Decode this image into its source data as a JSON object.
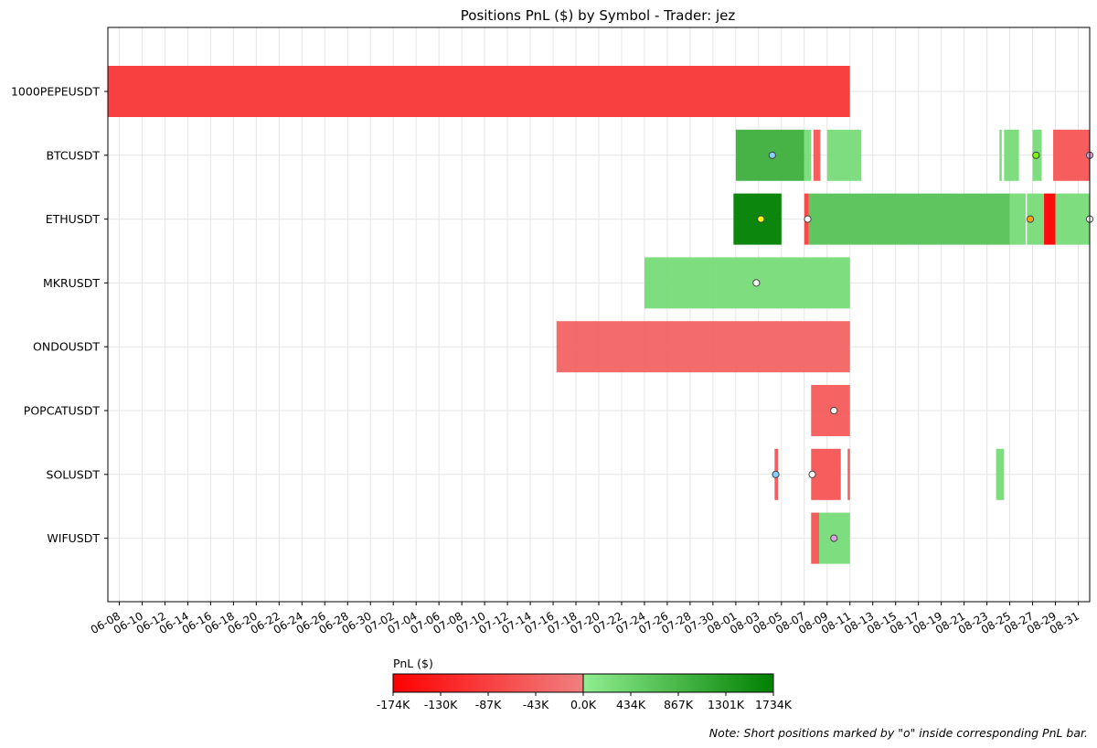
{
  "chart_data": {
    "type": "gantt",
    "title": "Positions PnL ($) by Symbol - Trader: jez",
    "xlabel": "",
    "ylabel": "",
    "xlim": [
      "2024-06-07",
      "2024-09-01"
    ],
    "grid": true,
    "x_tick_labels": [
      "06-08",
      "06-10",
      "06-12",
      "06-14",
      "06-16",
      "06-18",
      "06-20",
      "06-22",
      "06-24",
      "06-26",
      "06-28",
      "06-30",
      "07-02",
      "07-04",
      "07-06",
      "07-08",
      "07-10",
      "07-12",
      "07-14",
      "07-16",
      "07-18",
      "07-20",
      "07-22",
      "07-24",
      "07-26",
      "07-28",
      "07-30",
      "08-01",
      "08-03",
      "08-05",
      "08-07",
      "08-09",
      "08-11",
      "08-13",
      "08-15",
      "08-17",
      "08-19",
      "08-21",
      "08-23",
      "08-25",
      "08-27",
      "08-29",
      "08-31"
    ],
    "symbols": [
      "1000PEPEUSDT",
      "BTCUSDT",
      "ETHUSDT",
      "MKRUSDT",
      "ONDOUSDT",
      "POPCATUSDT",
      "SOLUSDT",
      "WIFUSDT"
    ],
    "positions": [
      {
        "symbol": "1000PEPEUSDT",
        "start": "2024-06-07",
        "end": "2024-08-11",
        "pnl": -100000
      },
      {
        "symbol": "BTCUSDT",
        "start": "2024-08-01",
        "end": "2024-08-07",
        "pnl": 1000000
      },
      {
        "symbol": "BTCUSDT",
        "start": "2024-08-07",
        "end": "2024-08-07.6",
        "pnl": 300000
      },
      {
        "symbol": "BTCUSDT",
        "start": "2024-08-07.8",
        "end": "2024-08-08.4",
        "pnl": -60000
      },
      {
        "symbol": "BTCUSDT",
        "start": "2024-08-09",
        "end": "2024-08-12",
        "pnl": 300000
      },
      {
        "symbol": "BTCUSDT",
        "start": "2024-08-24.1",
        "end": "2024-08-24.3",
        "pnl": 300000
      },
      {
        "symbol": "BTCUSDT",
        "start": "2024-08-24.5",
        "end": "2024-08-25.8",
        "pnl": 300000
      },
      {
        "symbol": "BTCUSDT",
        "start": "2024-08-27",
        "end": "2024-08-27.8",
        "pnl": 300000
      },
      {
        "symbol": "BTCUSDT",
        "start": "2024-08-28.8",
        "end": "2024-09-01",
        "pnl": -60000
      },
      {
        "symbol": "ETHUSDT",
        "start": "2024-07-31.8",
        "end": "2024-08-05",
        "pnl": 1734000
      },
      {
        "symbol": "ETHUSDT",
        "start": "2024-08-07",
        "end": "2024-08-07.4",
        "pnl": -90000
      },
      {
        "symbol": "ETHUSDT",
        "start": "2024-08-07.4",
        "end": "2024-08-25",
        "pnl": 700000
      },
      {
        "symbol": "ETHUSDT",
        "start": "2024-08-25",
        "end": "2024-08-26.4",
        "pnl": 300000
      },
      {
        "symbol": "ETHUSDT",
        "start": "2024-08-26.5",
        "end": "2024-08-28",
        "pnl": 300000
      },
      {
        "symbol": "ETHUSDT",
        "start": "2024-08-28",
        "end": "2024-08-29",
        "pnl": -174000
      },
      {
        "symbol": "ETHUSDT",
        "start": "2024-08-29",
        "end": "2024-09-01",
        "pnl": 300000
      },
      {
        "symbol": "MKRUSDT",
        "start": "2024-07-24",
        "end": "2024-08-11",
        "pnl": 300000
      },
      {
        "symbol": "ONDOUSDT",
        "start": "2024-07-16.3",
        "end": "2024-08-11",
        "pnl": -40000
      },
      {
        "symbol": "POPCATUSDT",
        "start": "2024-08-07.6",
        "end": "2024-08-11",
        "pnl": -50000
      },
      {
        "symbol": "SOLUSDT",
        "start": "2024-08-04.4",
        "end": "2024-08-04.7",
        "pnl": -60000
      },
      {
        "symbol": "SOLUSDT",
        "start": "2024-08-07.6",
        "end": "2024-08-10.2",
        "pnl": -60000
      },
      {
        "symbol": "SOLUSDT",
        "start": "2024-08-10.8",
        "end": "2024-08-11",
        "pnl": -60000
      },
      {
        "symbol": "SOLUSDT",
        "start": "2024-08-23.8",
        "end": "2024-08-24.5",
        "pnl": 300000
      },
      {
        "symbol": "WIFUSDT",
        "start": "2024-08-07.6",
        "end": "2024-08-08.3",
        "pnl": -60000
      },
      {
        "symbol": "WIFUSDT",
        "start": "2024-08-08.3",
        "end": "2024-08-11",
        "pnl": 300000
      }
    ],
    "short_markers": [
      {
        "symbol": "BTCUSDT",
        "date": "2024-08-04.2",
        "color": "#87cefa"
      },
      {
        "symbol": "BTCUSDT",
        "date": "2024-08-27.3",
        "color": "#7cfc00"
      },
      {
        "symbol": "BTCUSDT",
        "date": "2024-09-01",
        "color": "#dda0dd"
      },
      {
        "symbol": "ETHUSDT",
        "date": "2024-08-03.2",
        "color": "#ffff00"
      },
      {
        "symbol": "ETHUSDT",
        "date": "2024-08-07.3",
        "color": "#ffffff"
      },
      {
        "symbol": "ETHUSDT",
        "date": "2024-08-26.8",
        "color": "#ffa500"
      },
      {
        "symbol": "ETHUSDT",
        "date": "2024-09-01",
        "color": "#ffffff"
      },
      {
        "symbol": "MKRUSDT",
        "date": "2024-08-02.8",
        "color": "#ffffff"
      },
      {
        "symbol": "POPCATUSDT",
        "date": "2024-08-09.6",
        "color": "#ffffff"
      },
      {
        "symbol": "SOLUSDT",
        "date": "2024-08-04.5",
        "color": "#87cefa"
      },
      {
        "symbol": "SOLUSDT",
        "date": "2024-08-07.7",
        "color": "#ffffff"
      },
      {
        "symbol": "WIFUSDT",
        "date": "2024-08-09.6",
        "color": "#dda0dd"
      }
    ],
    "colorbar": {
      "label": "PnL ($)",
      "ticks": [
        "-174K",
        "-130K",
        "-87K",
        "-43K",
        "0.0K",
        "434K",
        "867K",
        "1301K",
        "1734K"
      ],
      "neg_min": -174000,
      "pos_max": 1734000,
      "neg_colors": [
        "#ff0000",
        "#f08080"
      ],
      "pos_colors": [
        "#90ee90",
        "#008000"
      ]
    },
    "note": "Note: Short positions marked by \"o\" inside corresponding PnL bar."
  }
}
